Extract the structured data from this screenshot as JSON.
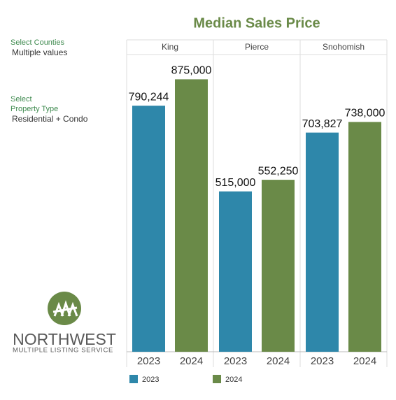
{
  "chart_data": {
    "type": "bar",
    "title": "Median Sales Price",
    "categories": [
      "King",
      "Pierce",
      "Snohomish"
    ],
    "series": [
      {
        "name": "2023",
        "color": "#2e87aa",
        "values": [
          790244,
          515000,
          703827
        ],
        "value_labels": [
          "790,244",
          "515,000",
          "703,827"
        ]
      },
      {
        "name": "2024",
        "color": "#6a8a48",
        "values": [
          875000,
          552250,
          738000
        ],
        "value_labels": [
          "875,000",
          "552,250",
          "738,000"
        ]
      }
    ],
    "ylim": [
      0,
      950000
    ]
  },
  "filters": [
    {
      "label": [
        "Select Counties"
      ],
      "value": "Multiple values"
    },
    {
      "label": [
        "Select",
        "Property Type"
      ],
      "value": "Residential + Condo"
    }
  ],
  "logo": {
    "name": "NORTHWEST",
    "subtitle": "MULTIPLE LISTING SERVICE"
  }
}
